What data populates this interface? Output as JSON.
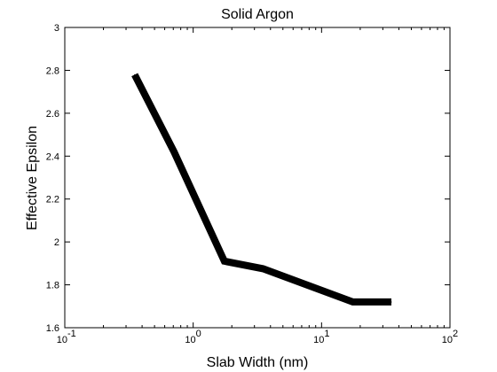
{
  "chart_data": {
    "type": "line",
    "title": "Solid Argon",
    "xlabel": "Slab Width (nm)",
    "ylabel": "Effective Epsilon",
    "xscale": "log",
    "xlim": [
      0.1,
      100
    ],
    "ylim": [
      1.6,
      3.0
    ],
    "grid": false,
    "legend": "none",
    "x_ticks": [
      {
        "base": "10",
        "exp": "-1"
      },
      {
        "base": "10",
        "exp": "0"
      },
      {
        "base": "10",
        "exp": "1"
      },
      {
        "base": "10",
        "exp": "2"
      }
    ],
    "y_ticks": [
      "1.6",
      "1.8",
      "2",
      "2.2",
      "2.4",
      "2.6",
      "2.8",
      "3"
    ],
    "series": [
      {
        "color": "#000000",
        "x": [
          0.35,
          0.71,
          1.75,
          3.5,
          17.5,
          35
        ],
        "y": [
          2.78,
          2.42,
          1.91,
          1.875,
          1.72,
          1.72
        ]
      }
    ]
  }
}
